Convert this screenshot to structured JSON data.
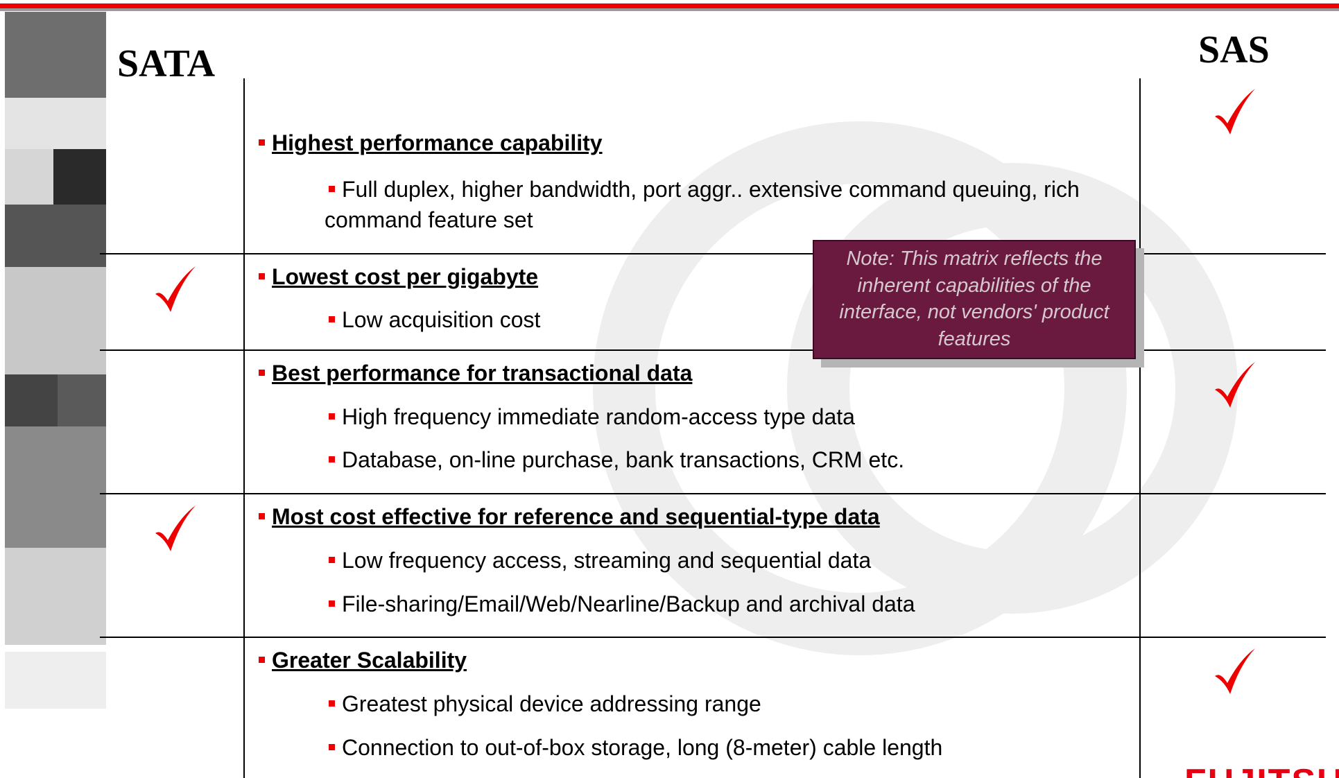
{
  "header": {
    "sata_label": "SATA",
    "sas_label": "SAS"
  },
  "rows": [
    {
      "title": "Highest performance capability",
      "bullets": [
        "Full duplex, higher bandwidth, port aggr.. extensive command queuing, rich command feature set"
      ],
      "sata": false,
      "sas": true
    },
    {
      "title": "Lowest cost per gigabyte",
      "bullets": [
        "Low acquisition cost"
      ],
      "sata": true,
      "sas": false
    },
    {
      "title": "Best performance for transactional data",
      "bullets": [
        "High frequency immediate random-access type data",
        "Database, on-line purchase, bank transactions, CRM etc."
      ],
      "sata": false,
      "sas": true
    },
    {
      "title": "Most cost effective for reference and sequential-type data",
      "bullets": [
        "Low frequency access, streaming and sequential data",
        "File-sharing/Email/Web/Nearline/Backup and archival data"
      ],
      "sata": true,
      "sas": false
    },
    {
      "title": "Greater Scalability",
      "bullets": [
        "Greatest physical device addressing range",
        "Connection to out-of-box storage, long (8-meter) cable length"
      ],
      "sata": false,
      "sas": true
    }
  ],
  "note": "Note:  This matrix reflects the inherent capabilities of the interface, not vendors' product features",
  "logo": "FUJITSU"
}
